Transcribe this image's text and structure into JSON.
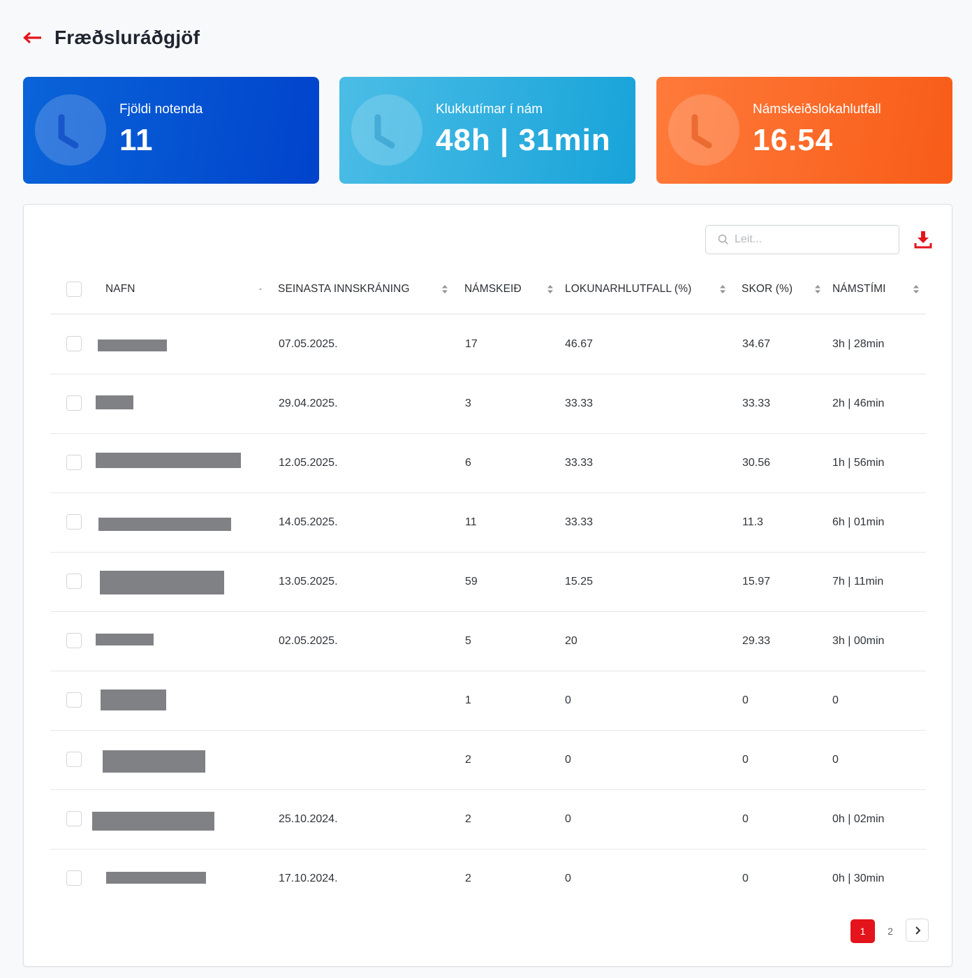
{
  "header": {
    "title": "Fræðsluráðgjöf",
    "back_icon": "arrow-left-icon",
    "accent": "#e3141b"
  },
  "stats": [
    {
      "label": "Fjöldi notenda",
      "value": "11",
      "icon": "clock-icon",
      "color": "#0a58d6"
    },
    {
      "label": "Klukkutímar í nám",
      "value": "48h | 31min",
      "icon": "clock-icon",
      "color": "#2fb0e0"
    },
    {
      "label": "Námskeiðslokahlutfall",
      "value": "16.54",
      "icon": "clock-icon",
      "color": "#fb6b28"
    }
  ],
  "search": {
    "placeholder": "Leit..."
  },
  "table": {
    "columns": [
      "NAFN",
      "SEINASTA INNSKRÁNING",
      "NÁMSKEIÐ",
      "LOKUNARHLUTFALL (%)",
      "SKOR (%)",
      "NÁMSTÍMI"
    ],
    "rows": [
      {
        "last_login": "07.05.2025.",
        "courses": "17",
        "completion": "46.67",
        "score": "34.67",
        "time": "3h | 28min"
      },
      {
        "last_login": "29.04.2025.",
        "courses": "3",
        "completion": "33.33",
        "score": "33.33",
        "time": "2h | 46min"
      },
      {
        "last_login": "12.05.2025.",
        "courses": "6",
        "completion": "33.33",
        "score": "30.56",
        "time": "1h | 56min"
      },
      {
        "last_login": "14.05.2025.",
        "courses": "11",
        "completion": "33.33",
        "score": "11.3",
        "time": "6h | 01min"
      },
      {
        "last_login": "13.05.2025.",
        "courses": "59",
        "completion": "15.25",
        "score": "15.97",
        "time": "7h | 11min"
      },
      {
        "last_login": "02.05.2025.",
        "courses": "5",
        "completion": "20",
        "score": "29.33",
        "time": "3h | 00min"
      },
      {
        "last_login": "",
        "courses": "1",
        "completion": "0",
        "score": "0",
        "time": "0"
      },
      {
        "last_login": "",
        "courses": "2",
        "completion": "0",
        "score": "0",
        "time": "0"
      },
      {
        "last_login": "25.10.2024.",
        "courses": "2",
        "completion": "0",
        "score": "0",
        "time": "0h | 02min"
      },
      {
        "last_login": "17.10.2024.",
        "courses": "2",
        "completion": "0",
        "score": "0",
        "time": "0h | 30min"
      }
    ]
  },
  "pagination": {
    "current": "1",
    "pages": [
      "1",
      "2"
    ],
    "next_icon": "chevron-right-icon"
  }
}
